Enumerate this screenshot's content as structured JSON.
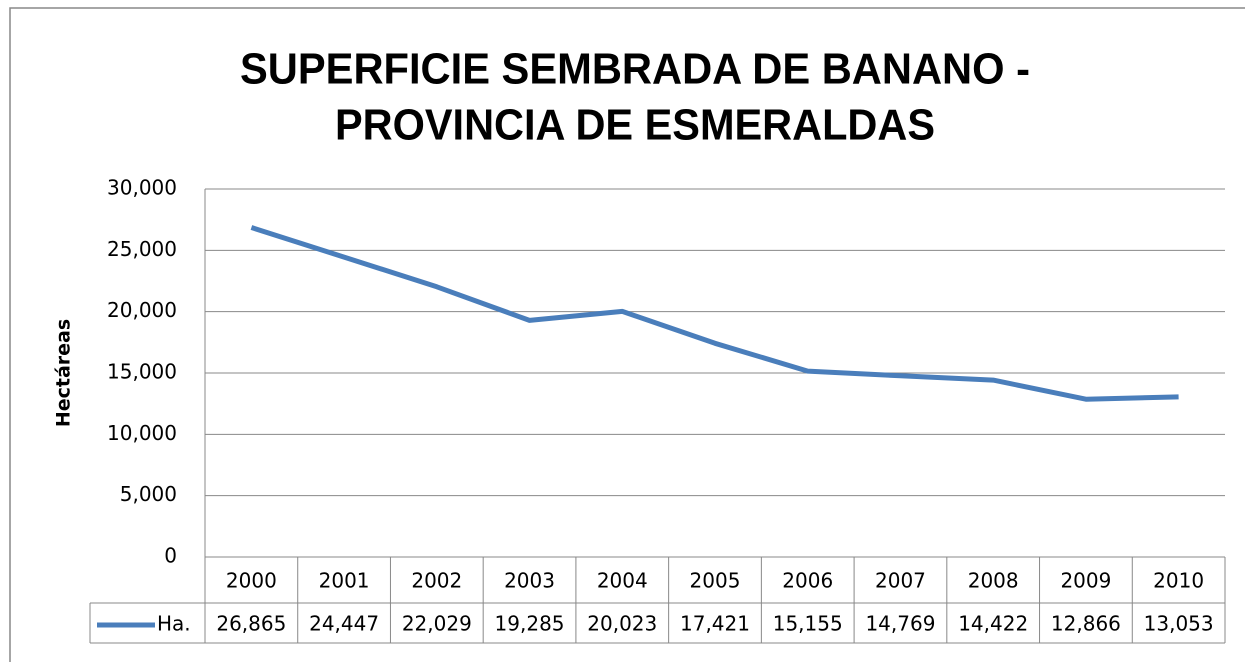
{
  "chart_data": {
    "type": "line",
    "title": [
      "SUPERFICIE SEMBRADA DE BANANO -",
      "PROVINCIA DE ESMERALDAS"
    ],
    "y_label": "Hectáreas",
    "categories": [
      "2000",
      "2001",
      "2002",
      "2003",
      "2004",
      "2005",
      "2006",
      "2007",
      "2008",
      "2009",
      "2010"
    ],
    "series": [
      {
        "name": "Ha.",
        "color": "#4a7ebb",
        "values": [
          26865,
          24447,
          22029,
          19285,
          20023,
          17421,
          15155,
          14769,
          14422,
          12866,
          13053
        ],
        "value_labels": [
          "26,865",
          "24,447",
          "22,029",
          "19,285",
          "20,023",
          "17,421",
          "15,155",
          "14,769",
          "14,422",
          "12,866",
          "13,053"
        ]
      }
    ],
    "ylim": [
      0,
      30000
    ],
    "yticks": [
      0,
      {
        "value": 5000,
        "label": "5,000"
      },
      {
        "value": 10000,
        "label": "10,000"
      },
      {
        "value": 15000,
        "label": "15,000"
      },
      {
        "value": 20000,
        "label": "20,000"
      },
      {
        "value": 25000,
        "label": "25,000"
      },
      {
        "value": 30000,
        "label": "30,000"
      }
    ],
    "grid": true
  }
}
